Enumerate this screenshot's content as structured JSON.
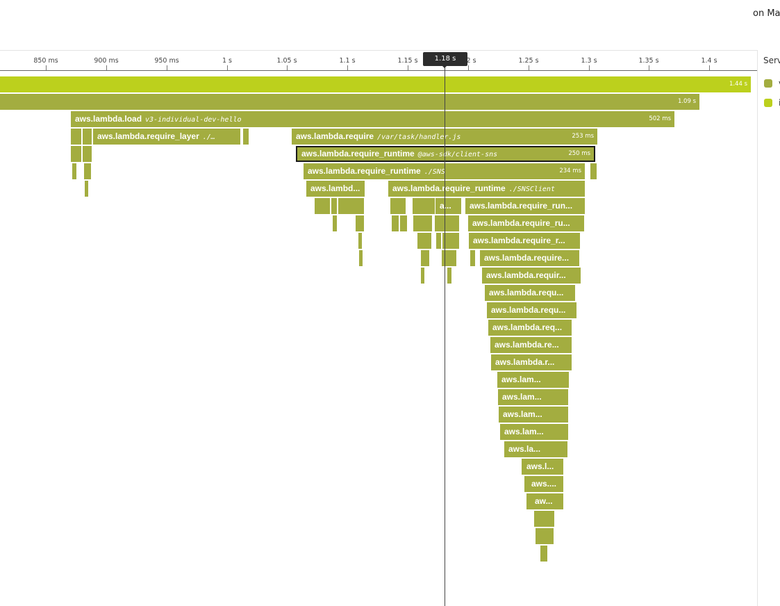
{
  "header": {
    "top_right_text": "on Ma"
  },
  "ruler": {
    "ticks": [
      "850 ms",
      "900 ms",
      "950 ms",
      "1 s",
      "1.05 s",
      "1.1 s",
      "1.15 s",
      "1.2 s",
      "1.25 s",
      "1.3 s",
      "1.35 s",
      "1.4 s"
    ]
  },
  "cursor": {
    "label": "1.18 s"
  },
  "legend": {
    "title": "Serv",
    "items": [
      {
        "label": "v",
        "color": "#a3ad40"
      },
      {
        "label": "i",
        "color": "#bcd01d"
      }
    ]
  },
  "spans": [
    {
      "name": "",
      "resource": "",
      "duration": "1.44 s",
      "color": "lime"
    },
    {
      "name": "",
      "resource": "",
      "duration": "1.09 s"
    },
    {
      "name": "aws.lambda.load",
      "resource": "v3-individual-dev-hello",
      "duration": "502 ms"
    },
    {
      "name": "aws.lambda.require_layer",
      "resource": "./…",
      "duration": ""
    },
    {
      "name": "aws.lambda.require",
      "resource": "/var/task/handler.js",
      "duration": "253 ms"
    },
    {
      "name": "aws.lambda.require_runtime",
      "resource": "@aws-sdk/client-sns",
      "duration": "250 ms",
      "selected": true
    },
    {
      "name": "aws.lambda.require_runtime",
      "resource": "./SNS",
      "duration": "234 ms"
    },
    {
      "name": "aws.lambd...",
      "resource": "",
      "duration": ""
    },
    {
      "name": "aws.lambda.require_runtime",
      "resource": "./SNSClient",
      "duration": ""
    },
    {
      "name": "a...",
      "resource": "",
      "duration": ""
    },
    {
      "name": "aws.lambda.require_run...",
      "resource": "",
      "duration": ""
    },
    {
      "name": "aws.lambda.require_ru...",
      "resource": "",
      "duration": ""
    },
    {
      "name": "aws.lambda.require_r...",
      "resource": "",
      "duration": ""
    },
    {
      "name": "aws.lambda.require...",
      "resource": "",
      "duration": ""
    },
    {
      "name": "aws.lambda.requir...",
      "resource": "",
      "duration": ""
    },
    {
      "name": "aws.lambda.requ...",
      "resource": "",
      "duration": ""
    },
    {
      "name": "aws.lambda.requ...",
      "resource": "",
      "duration": ""
    },
    {
      "name": "aws.lambda.req...",
      "resource": "",
      "duration": ""
    },
    {
      "name": "aws.lambda.re...",
      "resource": "",
      "duration": ""
    },
    {
      "name": "aws.lambda.r...",
      "resource": "",
      "duration": ""
    },
    {
      "name": "aws.lam...",
      "resource": "",
      "duration": ""
    },
    {
      "name": "aws.lam...",
      "resource": "",
      "duration": ""
    },
    {
      "name": "aws.lam...",
      "resource": "",
      "duration": ""
    },
    {
      "name": "aws.lam...",
      "resource": "",
      "duration": ""
    },
    {
      "name": "aws.la...",
      "resource": "",
      "duration": ""
    },
    {
      "name": "aws.l...",
      "resource": "",
      "duration": ""
    },
    {
      "name": "aws....",
      "resource": "",
      "duration": ""
    },
    {
      "name": "aw...",
      "resource": "",
      "duration": ""
    }
  ]
}
